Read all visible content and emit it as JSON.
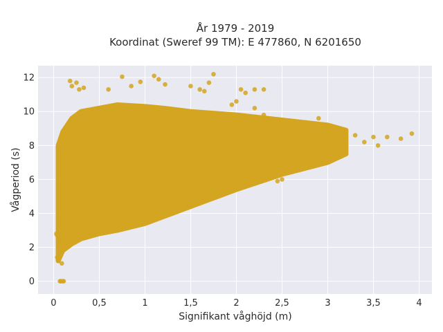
{
  "chart_data": {
    "type": "scatter",
    "title_line1": "År 1979 - 2019",
    "title_line2": "Koordinat (Sweref 99 TM): E 477860, N 6201650",
    "xlabel": "Signifikant våghöjd (m)",
    "ylabel": "Vågperiod (s)",
    "xlim": [
      -0.17,
      4.14
    ],
    "ylim": [
      -0.75,
      12.7
    ],
    "x_ticks": [
      0,
      0.5,
      1,
      1.5,
      2,
      2.5,
      3,
      3.5,
      4
    ],
    "x_tick_labels": [
      "0",
      "0,5",
      "1",
      "1,5",
      "2",
      "2,5",
      "3",
      "3,5",
      "4"
    ],
    "y_ticks": [
      0,
      2,
      4,
      6,
      8,
      10,
      12
    ],
    "y_tick_labels": [
      "0",
      "2",
      "4",
      "6",
      "8",
      "10",
      "12"
    ],
    "grid": true,
    "legend": false,
    "marker_color": "#d4a520",
    "plot_background": "#e9e9f1",
    "envelope": {
      "x": [
        0.05,
        0.1,
        0.2,
        0.3,
        0.5,
        0.7,
        1.0,
        1.2,
        1.5,
        2.0,
        2.5,
        3.0,
        3.2
      ],
      "y_min": [
        1.2,
        1.8,
        2.2,
        2.5,
        2.8,
        3.0,
        3.4,
        3.8,
        4.4,
        5.4,
        6.3,
        7.0,
        7.5
      ],
      "y_max": [
        8.0,
        8.8,
        9.6,
        10.0,
        10.2,
        10.4,
        10.3,
        10.2,
        10.0,
        9.8,
        9.5,
        9.2,
        8.9
      ]
    },
    "outliers": [
      {
        "x": 0.07,
        "y": 0.0
      },
      {
        "x": 0.08,
        "y": 0.0
      },
      {
        "x": 0.1,
        "y": 0.0
      },
      {
        "x": 0.11,
        "y": 0.0
      },
      {
        "x": 0.04,
        "y": 2.7
      },
      {
        "x": 0.05,
        "y": 2.6
      },
      {
        "x": 0.03,
        "y": 2.8
      },
      {
        "x": 0.09,
        "y": 1.05
      },
      {
        "x": 0.05,
        "y": 1.25
      },
      {
        "x": 0.04,
        "y": 1.4
      },
      {
        "x": 0.2,
        "y": 11.5
      },
      {
        "x": 0.25,
        "y": 11.7
      },
      {
        "x": 0.28,
        "y": 11.3
      },
      {
        "x": 0.33,
        "y": 11.4
      },
      {
        "x": 0.18,
        "y": 11.8
      },
      {
        "x": 0.75,
        "y": 12.05
      },
      {
        "x": 1.1,
        "y": 12.1
      },
      {
        "x": 1.15,
        "y": 11.9
      },
      {
        "x": 1.22,
        "y": 11.6
      },
      {
        "x": 0.95,
        "y": 11.75
      },
      {
        "x": 0.85,
        "y": 11.5
      },
      {
        "x": 0.6,
        "y": 11.3
      },
      {
        "x": 1.5,
        "y": 11.5
      },
      {
        "x": 1.6,
        "y": 11.3
      },
      {
        "x": 1.7,
        "y": 11.7
      },
      {
        "x": 1.75,
        "y": 12.2
      },
      {
        "x": 1.65,
        "y": 11.2
      },
      {
        "x": 2.05,
        "y": 11.3
      },
      {
        "x": 2.1,
        "y": 11.1
      },
      {
        "x": 2.2,
        "y": 11.3
      },
      {
        "x": 2.3,
        "y": 11.3
      },
      {
        "x": 2.0,
        "y": 10.6
      },
      {
        "x": 1.95,
        "y": 10.4
      },
      {
        "x": 2.2,
        "y": 10.2
      },
      {
        "x": 2.3,
        "y": 9.8
      },
      {
        "x": 2.5,
        "y": 9.5
      },
      {
        "x": 2.65,
        "y": 9.3
      },
      {
        "x": 2.75,
        "y": 9.2
      },
      {
        "x": 2.9,
        "y": 9.6
      },
      {
        "x": 3.0,
        "y": 9.2
      },
      {
        "x": 3.2,
        "y": 8.6
      },
      {
        "x": 3.3,
        "y": 8.6
      },
      {
        "x": 3.4,
        "y": 8.2
      },
      {
        "x": 3.5,
        "y": 8.5
      },
      {
        "x": 3.55,
        "y": 8.0
      },
      {
        "x": 3.65,
        "y": 8.5
      },
      {
        "x": 3.8,
        "y": 8.4
      },
      {
        "x": 3.92,
        "y": 8.7
      },
      {
        "x": 3.0,
        "y": 7.8
      },
      {
        "x": 3.1,
        "y": 7.4
      },
      {
        "x": 2.9,
        "y": 7.0
      },
      {
        "x": 2.7,
        "y": 6.8
      },
      {
        "x": 2.5,
        "y": 6.0
      },
      {
        "x": 2.45,
        "y": 5.9
      }
    ]
  }
}
